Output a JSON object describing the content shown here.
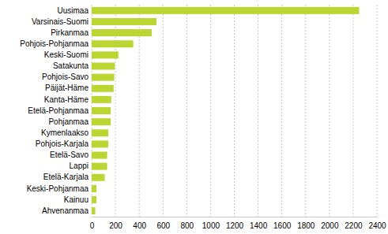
{
  "chart_data": {
    "type": "bar",
    "orientation": "horizontal",
    "categories": [
      "Uusimaa",
      "Varsinais-Suomi",
      "Pirkanmaa",
      "Pohjois-Pohjanmaa",
      "Keski-Suomi",
      "Satakunta",
      "Pohjois-Savo",
      "Päijät-Häme",
      "Kanta-Häme",
      "Etelä-Pohjanmaa",
      "Pohjanmaa",
      "Kymenlaakso",
      "Pohjois-Karjala",
      "Etelä-Savo",
      "Lappi",
      "Etelä-Karjala",
      "Keski-Pohjanmaa",
      "Kainuu",
      "Ahvenanmaa"
    ],
    "values": [
      2250,
      545,
      505,
      350,
      225,
      195,
      190,
      185,
      165,
      160,
      160,
      140,
      140,
      130,
      130,
      110,
      40,
      40,
      30
    ],
    "color": "#bcd631",
    "xlim": [
      0,
      2400
    ],
    "xticks": [
      0,
      200,
      400,
      600,
      800,
      1000,
      1200,
      1400,
      1600,
      1800,
      2000,
      2200,
      2400
    ],
    "grid": true
  }
}
